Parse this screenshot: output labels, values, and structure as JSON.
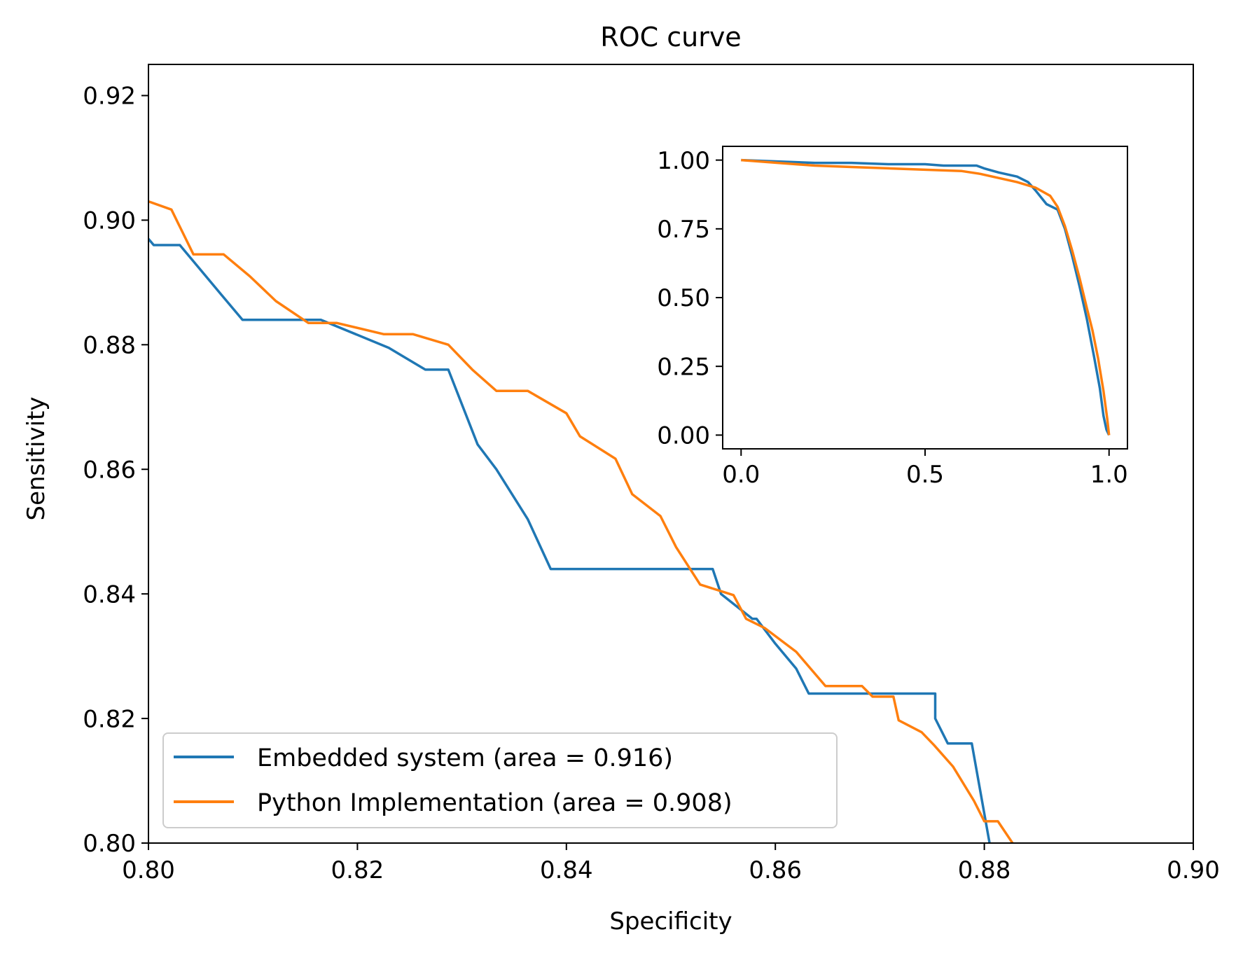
{
  "chart_data": [
    {
      "type": "line",
      "title": "ROC curve",
      "xlabel": "Specificity",
      "ylabel": "Sensitivity",
      "xlim": [
        0.8,
        0.9
      ],
      "ylim": [
        0.8,
        0.925
      ],
      "xticks": [
        "0.80",
        "0.82",
        "0.84",
        "0.86",
        "0.88",
        "0.90"
      ],
      "yticks": [
        "0.80",
        "0.82",
        "0.84",
        "0.86",
        "0.88",
        "0.90",
        "0.92"
      ],
      "grid": false,
      "legend_position": "lower-left",
      "series": [
        {
          "name": "Embedded system (area = 0.916)",
          "color": "#1f77b4",
          "x": [
            0.8,
            0.8005,
            0.803,
            0.807,
            0.809,
            0.8165,
            0.823,
            0.8265,
            0.8287,
            0.8315,
            0.8333,
            0.8363,
            0.8385,
            0.854,
            0.8548,
            0.8578,
            0.8582,
            0.86,
            0.862,
            0.8632,
            0.8753,
            0.8753,
            0.8765,
            0.8788,
            0.8805
          ],
          "y": [
            0.897,
            0.896,
            0.896,
            0.888,
            0.884,
            0.884,
            0.8795,
            0.876,
            0.876,
            0.864,
            0.86,
            0.852,
            0.844,
            0.844,
            0.84,
            0.836,
            0.836,
            0.832,
            0.828,
            0.824,
            0.824,
            0.82,
            0.816,
            0.816,
            0.8
          ]
        },
        {
          "name": "Python Implementation (area = 0.908)",
          "color": "#ff7f0e",
          "x": [
            0.8,
            0.8022,
            0.8043,
            0.8072,
            0.8097,
            0.8122,
            0.8153,
            0.818,
            0.8225,
            0.8253,
            0.8287,
            0.831,
            0.8333,
            0.8363,
            0.84,
            0.8413,
            0.8447,
            0.8463,
            0.849,
            0.8505,
            0.8528,
            0.856,
            0.8572,
            0.859,
            0.862,
            0.8648,
            0.8683,
            0.8693,
            0.8713,
            0.8718,
            0.874,
            0.8752,
            0.877,
            0.879,
            0.88,
            0.8813,
            0.8827
          ],
          "y": [
            0.903,
            0.9017,
            0.8945,
            0.8945,
            0.891,
            0.887,
            0.8835,
            0.8835,
            0.8817,
            0.8817,
            0.88,
            0.876,
            0.8726,
            0.8726,
            0.869,
            0.8653,
            0.8617,
            0.856,
            0.8525,
            0.8475,
            0.8415,
            0.8398,
            0.836,
            0.8345,
            0.8307,
            0.8252,
            0.8252,
            0.8235,
            0.8235,
            0.8197,
            0.8178,
            0.8157,
            0.8123,
            0.8068,
            0.8035,
            0.8035,
            0.8
          ]
        }
      ]
    },
    {
      "type": "line",
      "title": "",
      "xlabel": "",
      "ylabel": "",
      "xlim": [
        -0.05,
        1.05
      ],
      "ylim": [
        -0.05,
        1.05
      ],
      "xticks": [
        "0.0",
        "0.5",
        "1.0"
      ],
      "yticks": [
        "0.00",
        "0.25",
        "0.50",
        "0.75",
        "1.00"
      ],
      "grid": false,
      "series": [
        {
          "name": "Embedded system (area = 0.916)",
          "color": "#1f77b4",
          "x": [
            0.0,
            0.1,
            0.2,
            0.3,
            0.4,
            0.5,
            0.55,
            0.6,
            0.64,
            0.66,
            0.7,
            0.75,
            0.78,
            0.8,
            0.83,
            0.86,
            0.88,
            0.9,
            0.92,
            0.94,
            0.96,
            0.975,
            0.985,
            0.993,
            1.0
          ],
          "y": [
            1.0,
            0.995,
            0.99,
            0.99,
            0.985,
            0.985,
            0.98,
            0.98,
            0.98,
            0.97,
            0.955,
            0.94,
            0.92,
            0.89,
            0.84,
            0.82,
            0.75,
            0.65,
            0.54,
            0.42,
            0.28,
            0.17,
            0.07,
            0.02,
            0.0
          ]
        },
        {
          "name": "Python Implementation (area = 0.908)",
          "color": "#ff7f0e",
          "x": [
            0.0,
            0.1,
            0.2,
            0.3,
            0.4,
            0.5,
            0.6,
            0.65,
            0.7,
            0.75,
            0.8,
            0.84,
            0.86,
            0.88,
            0.9,
            0.92,
            0.94,
            0.955,
            0.97,
            0.985,
            0.995,
            1.0
          ],
          "y": [
            1.0,
            0.99,
            0.98,
            0.975,
            0.97,
            0.965,
            0.96,
            0.95,
            0.935,
            0.92,
            0.9,
            0.87,
            0.83,
            0.76,
            0.67,
            0.57,
            0.46,
            0.38,
            0.28,
            0.16,
            0.06,
            0.0
          ]
        }
      ]
    }
  ]
}
